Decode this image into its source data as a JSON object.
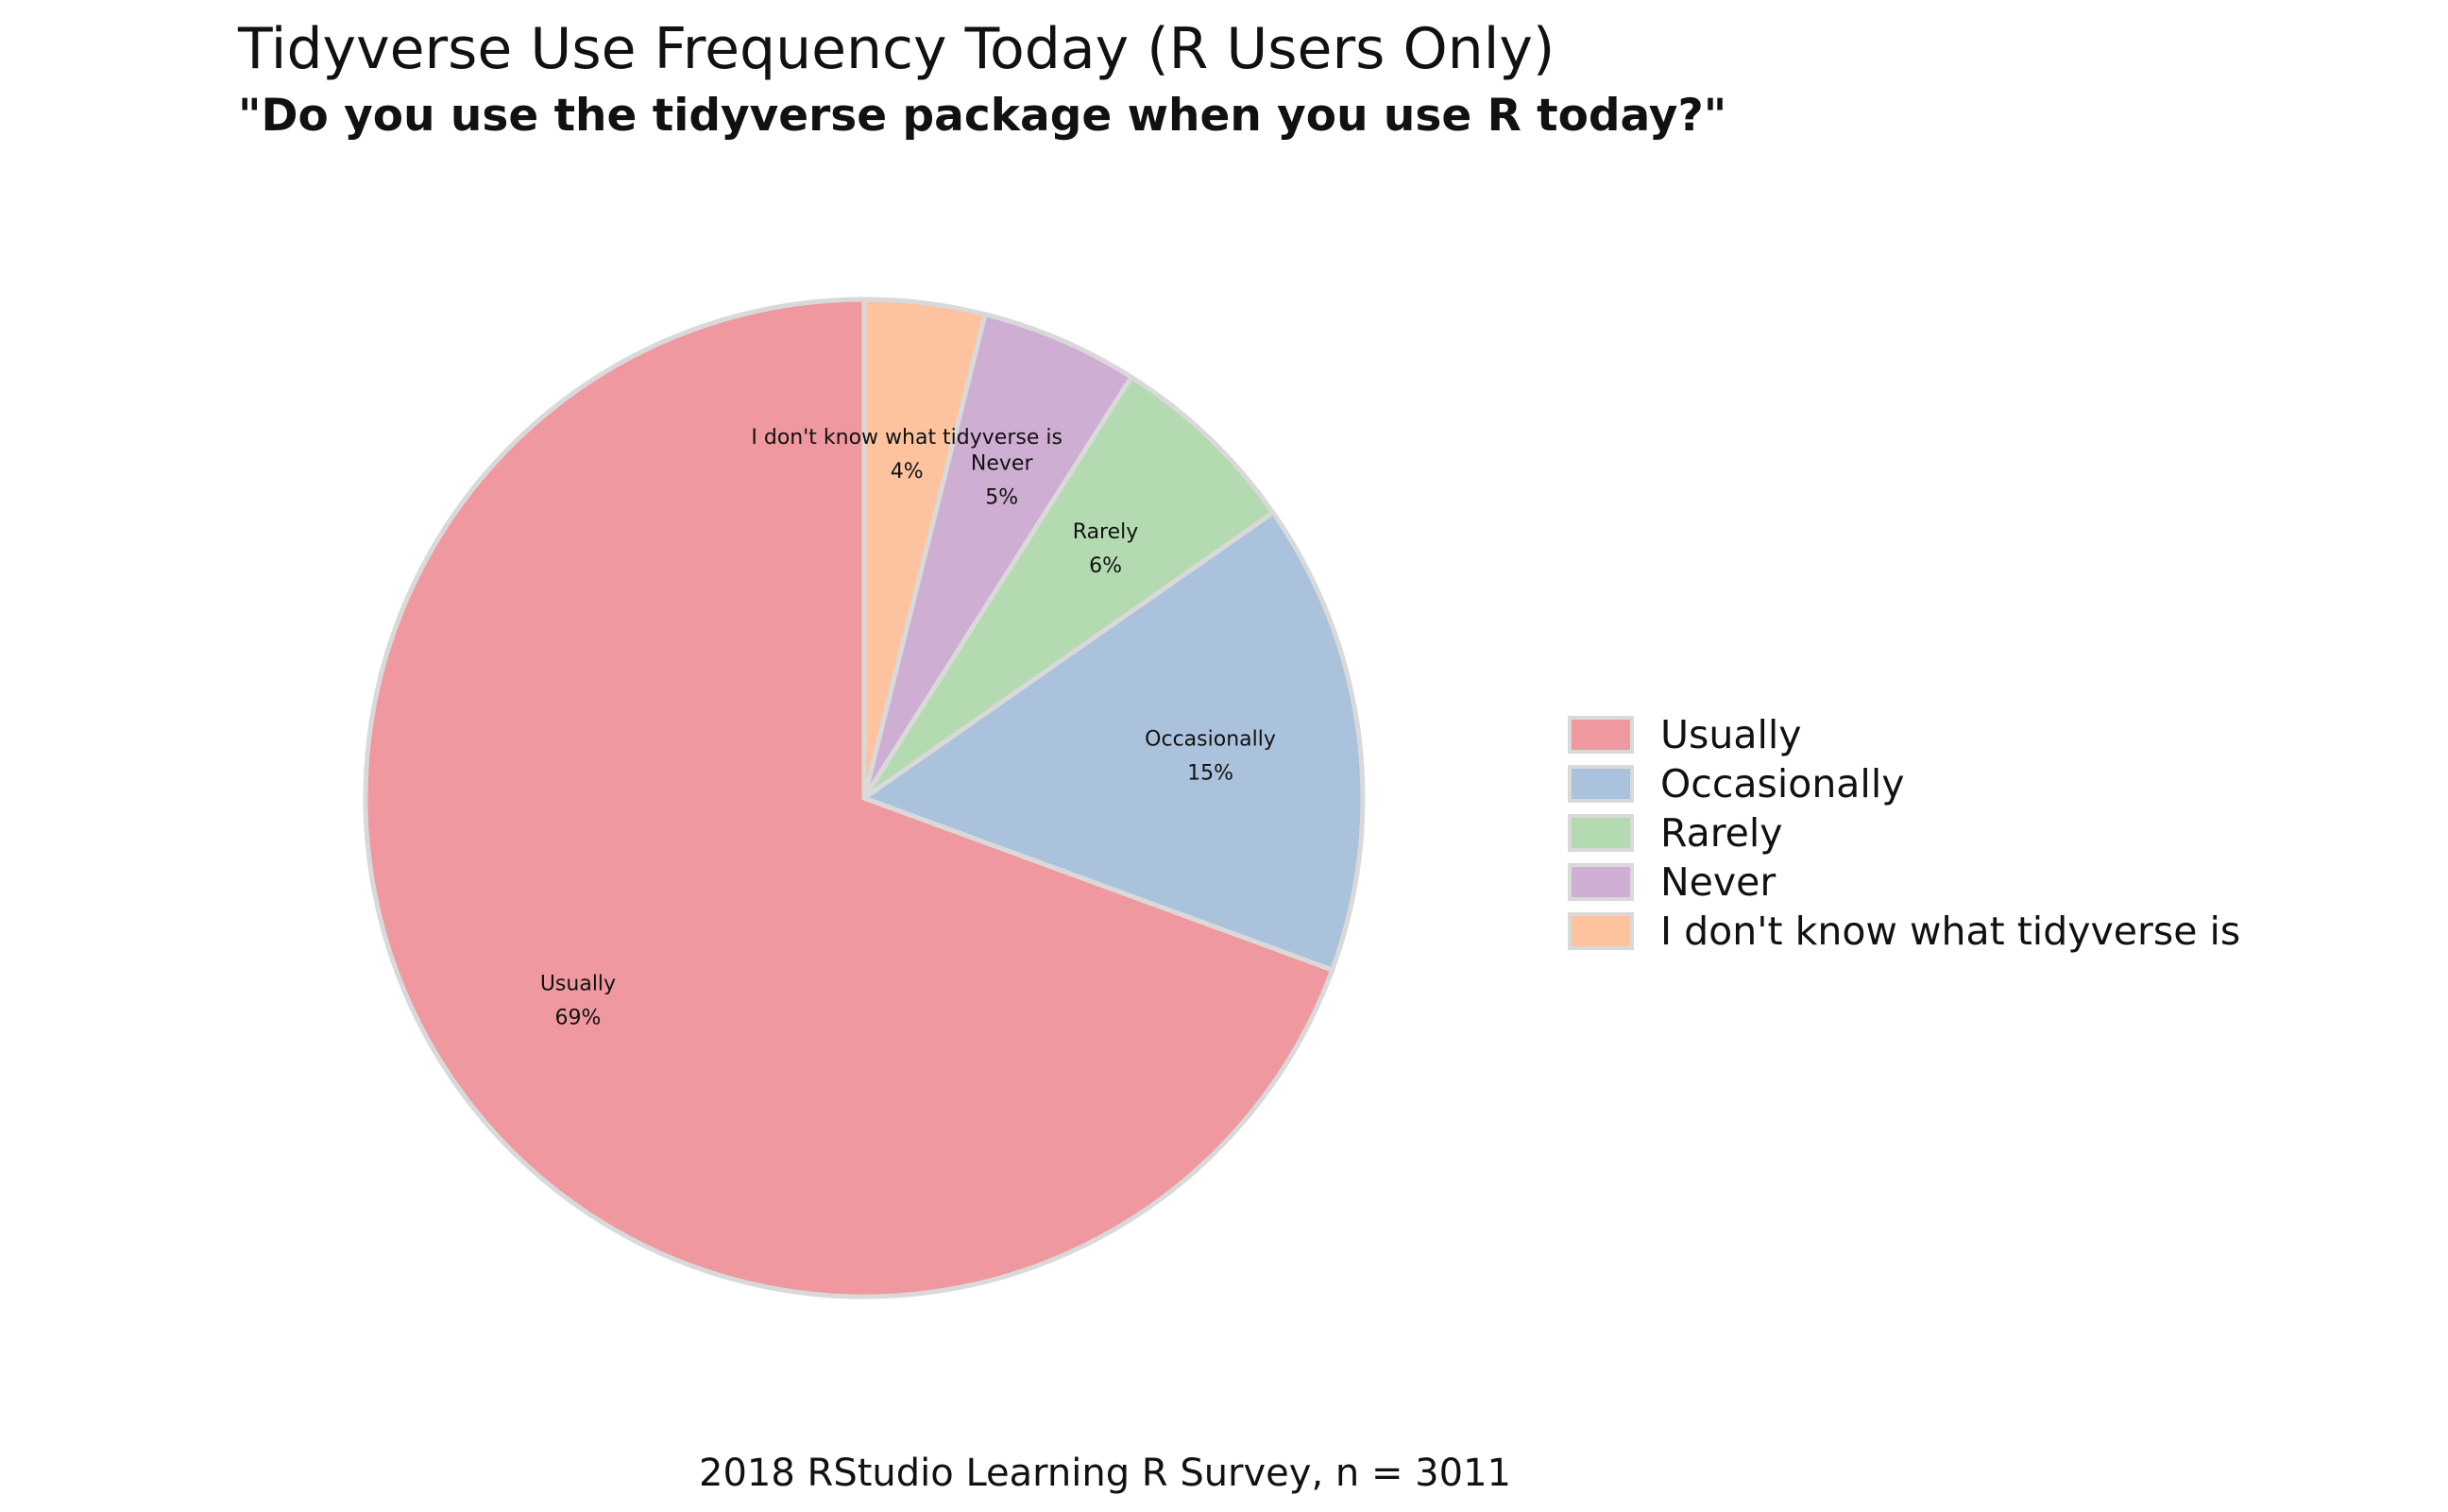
{
  "title": "Tidyverse Use Frequency Today (R Users Only)",
  "subtitle": "\"Do you use the tidyverse package when you use R today?\"",
  "caption": "2018 RStudio Learning R Survey, n = 3011",
  "colors": {
    "slice_border": "#d9d9d9",
    "Usually": "#f0989f",
    "Occasionally": "#abc2dc",
    "Rarely": "#b4dab2",
    "Never": "#cfaed3",
    "I don't know what tidyverse is": "#fdc39e"
  },
  "chart_data": {
    "type": "pie",
    "title": "Tidyverse Use Frequency Today (R Users Only)",
    "subtitle": "\"Do you use the tidyverse package when you use R today?\"",
    "caption": "2018 RStudio Learning R Survey, n = 3011",
    "legend_position": "right",
    "slices": [
      {
        "label": "Usually",
        "value": 69.4,
        "percent_label": "69%",
        "color": "#f0989f"
      },
      {
        "label": "Occasionally",
        "value": 15.3,
        "percent_label": "15%",
        "color": "#abc2dc"
      },
      {
        "label": "Rarely",
        "value": 6.3,
        "percent_label": "6%",
        "color": "#b4dab2"
      },
      {
        "label": "Never",
        "value": 5.1,
        "percent_label": "5%",
        "color": "#cfaed3"
      },
      {
        "label": "I don't know what tidyverse is",
        "value": 3.9,
        "percent_label": "4%",
        "color": "#fdc39e"
      }
    ],
    "legend": [
      "Usually",
      "Occasionally",
      "Rarely",
      "Never",
      "I don't know what tidyverse is"
    ]
  }
}
